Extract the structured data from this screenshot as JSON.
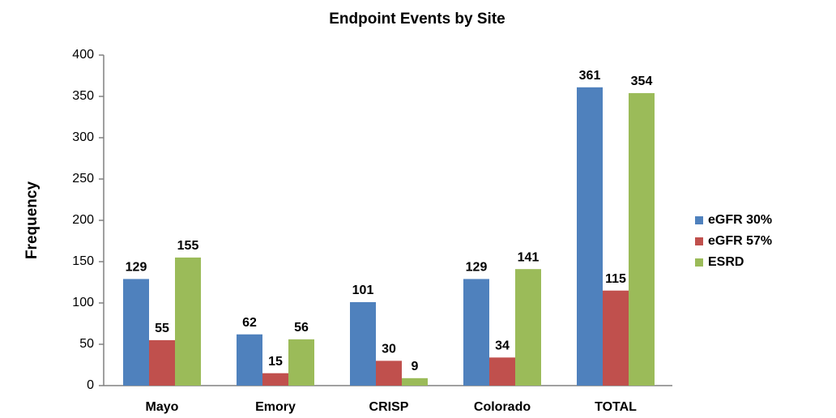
{
  "chart_data": {
    "type": "bar",
    "title": "Endpoint Events by Site",
    "y_label": "Frequency",
    "categories": [
      "Mayo",
      "Emory",
      "CRISP",
      "Colorado",
      "TOTAL"
    ],
    "series": [
      {
        "name": "eGFR 30%",
        "color": "#4f81bd",
        "values": [
          129,
          62,
          101,
          129,
          361
        ]
      },
      {
        "name": "eGFR 57%",
        "color": "#c0504d",
        "values": [
          55,
          15,
          30,
          34,
          115
        ]
      },
      {
        "name": "ESRD",
        "color": "#9bbb59",
        "values": [
          155,
          56,
          9,
          141,
          354
        ]
      }
    ],
    "ylim": [
      0,
      400
    ],
    "yticks": [
      0,
      50,
      100,
      150,
      200,
      250,
      300,
      350,
      400
    ],
    "legend": "right",
    "grid": false
  }
}
